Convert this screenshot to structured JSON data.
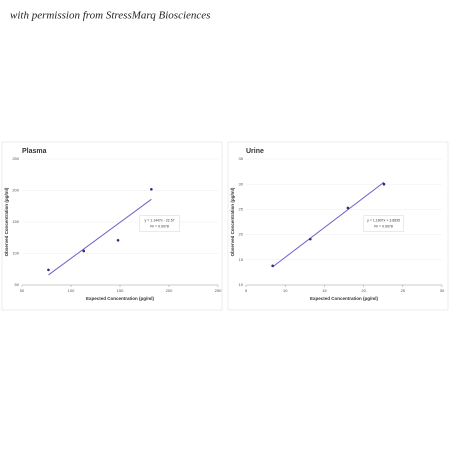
{
  "caption": "with permission from StressMarq Biosciences",
  "chart_data": [
    {
      "type": "scatter",
      "title": "Plasma",
      "x_label": "Expected Concentration (pg/ml)",
      "y_label": "Observed Concentration (pg/ml)",
      "x": [
        77,
        113,
        148,
        182
      ],
      "values": [
        74,
        104,
        121,
        202
      ],
      "color": "#2b2b80",
      "trendline": {
        "x": [
          77,
          182
        ],
        "y": [
          66,
          186
        ],
        "color": "#7060c8"
      },
      "annotations": [
        "y = 1.1447x - 22.57",
        "R² = 0.9078"
      ],
      "xlim": [
        50,
        250
      ],
      "xticks": [
        50,
        100,
        150,
        200,
        250
      ],
      "ylim": [
        50,
        250
      ],
      "yticks": [
        50,
        100,
        150,
        200,
        250
      ],
      "grid": true
    },
    {
      "type": "scatter",
      "title": "Urine",
      "x_label": "Expected Concentration (pg/ml)",
      "y_label": "Observed Concentration (pg/ml)",
      "x": [
        8.4,
        13.2,
        18,
        22.6
      ],
      "values": [
        13.8,
        19.1,
        25.3,
        30
      ],
      "color": "#2b2b80",
      "trendline": {
        "x": [
          8.4,
          22.6
        ],
        "y": [
          13.6,
          30.4
        ],
        "color": "#7060c8"
      },
      "annotations": [
        "y = 1.1807x + 3.6835",
        "R² = 0.9978"
      ],
      "xlim": [
        5,
        30
      ],
      "xticks": [
        5,
        10,
        15,
        20,
        25,
        30
      ],
      "ylim": [
        10,
        35
      ],
      "yticks": [
        10,
        15,
        20,
        25,
        30,
        35
      ],
      "grid": true
    }
  ]
}
